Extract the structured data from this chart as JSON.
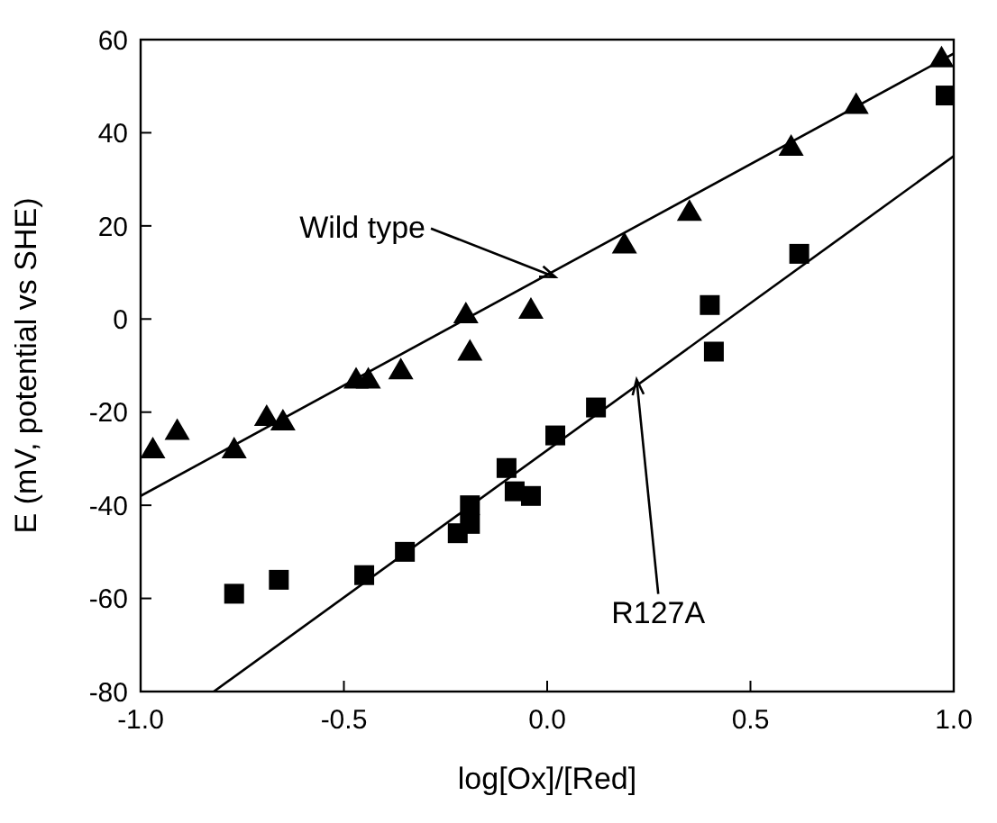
{
  "chart_data": {
    "type": "scatter",
    "xlabel": "log[Ox]/[Red]",
    "ylabel": "E (mV, potential vs SHE)",
    "xlim": [
      -1,
      1
    ],
    "ylim": [
      -80,
      60
    ],
    "xticks": [
      {
        "value": -1,
        "label": "-1.0"
      },
      {
        "value": -0.5,
        "label": "-0.5"
      },
      {
        "value": 0,
        "label": "0.0"
      },
      {
        "value": 0.5,
        "label": "0.5"
      },
      {
        "value": 1,
        "label": "1.0"
      }
    ],
    "yticks": [
      -80,
      -60,
      -40,
      -20,
      0,
      20,
      40,
      60
    ],
    "grid": false,
    "legend": false,
    "series": [
      {
        "type": "scatter",
        "marker": "triangle",
        "color": "#000000",
        "x": [
          -0.97,
          -0.91,
          -0.77,
          -0.69,
          -0.65,
          -0.47,
          -0.44,
          -0.36,
          -0.2,
          -0.19,
          -0.04,
          0.19,
          0.35,
          0.6,
          0.76,
          0.97
        ],
        "values": [
          -28,
          -24,
          -28,
          -21,
          -22,
          -13,
          -13,
          -11,
          1,
          -7,
          2,
          16,
          23,
          37,
          46,
          56
        ]
      },
      {
        "type": "scatter",
        "marker": "square",
        "color": "#000000",
        "x": [
          -0.77,
          -0.66,
          -0.45,
          -0.35,
          -0.22,
          -0.19,
          -0.19,
          -0.1,
          -0.08,
          -0.04,
          0.02,
          0.12,
          0.4,
          0.41,
          0.62,
          0.98
        ],
        "values": [
          -59,
          -56,
          -55,
          -50,
          -46,
          -44,
          -40,
          -32,
          -37,
          -38,
          -25,
          -19,
          3,
          -7,
          14,
          48
        ]
      },
      {
        "type": "line",
        "marker": "none",
        "line_style": "solid",
        "color": "#000000",
        "x": [
          -1,
          1
        ],
        "values": [
          -38,
          57
        ]
      },
      {
        "type": "line",
        "marker": "none",
        "line_style": "solid",
        "color": "#000000",
        "x": [
          -0.82,
          1
        ],
        "values": [
          -80,
          35
        ]
      }
    ],
    "annotations": [
      {
        "text": "Wild type",
        "x": 0.02,
        "y": 9
      },
      {
        "text": "R127A",
        "x": 0.22,
        "y": -13
      }
    ]
  }
}
